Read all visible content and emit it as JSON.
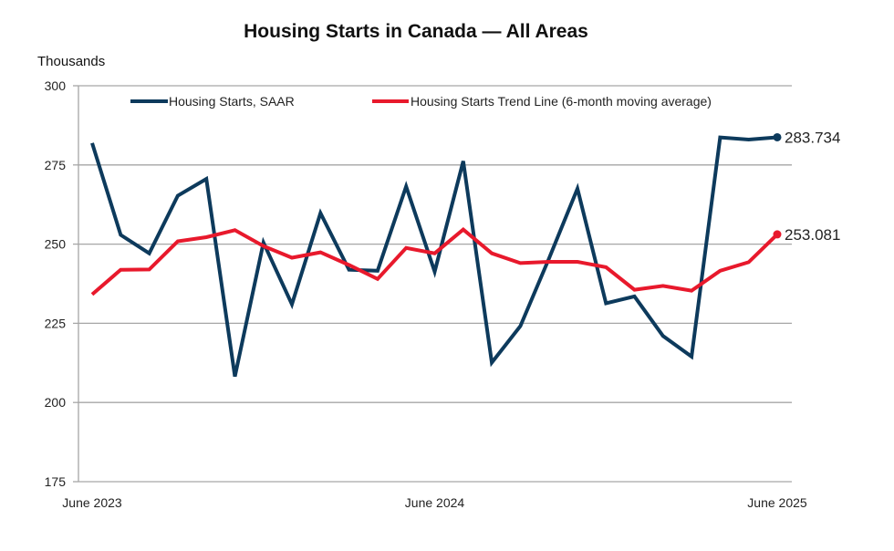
{
  "chart_data": {
    "type": "line",
    "title": "Housing Starts in Canada — All Areas",
    "xlabel": "",
    "ylabel": "Thousands",
    "ylim": [
      175,
      300
    ],
    "yticks": [
      175,
      200,
      225,
      250,
      275,
      300
    ],
    "grid": true,
    "legend_position": "top-center",
    "x": [
      "Jun 2023",
      "Jul 2023",
      "Aug 2023",
      "Sep 2023",
      "Oct 2023",
      "Nov 2023",
      "Dec 2023",
      "Jan 2024",
      "Feb 2024",
      "Mar 2024",
      "Apr 2024",
      "May 2024",
      "Jun 2024",
      "Jul 2024",
      "Aug 2024",
      "Sep 2024",
      "Oct 2024",
      "Nov 2024",
      "Dec 2024",
      "Jan 2025",
      "Feb 2025",
      "Mar 2025",
      "Apr 2025",
      "May 2025",
      "Jun 2025"
    ],
    "xtick_labels": [
      {
        "index": 0,
        "label": "June 2023"
      },
      {
        "index": 12,
        "label": "June 2024"
      },
      {
        "index": 24,
        "label": "June 2025"
      }
    ],
    "series": [
      {
        "name": "Housing Starts, SAAR",
        "color": "#0d3a5c",
        "values": [
          281.9,
          252.9,
          247.1,
          265.3,
          270.6,
          208.2,
          250.5,
          231.0,
          259.8,
          241.9,
          241.6,
          268.2,
          241.3,
          276.2,
          212.6,
          224.1,
          245.4,
          267.5,
          231.3,
          233.5,
          221.0,
          214.5,
          283.7,
          283.0,
          283.734
        ],
        "end_label": "283.734"
      },
      {
        "name": "Housing Starts Trend Line (6-month moving average)",
        "color": "#e8192c",
        "values": [
          234.1,
          241.9,
          242.0,
          250.9,
          252.2,
          254.4,
          249.4,
          245.7,
          247.4,
          243.4,
          239.0,
          248.8,
          247.1,
          254.6,
          247.1,
          244.0,
          244.4,
          244.4,
          242.7,
          235.6,
          236.8,
          235.3,
          241.6,
          244.3,
          253.081
        ],
        "end_label": "253.081"
      }
    ]
  }
}
